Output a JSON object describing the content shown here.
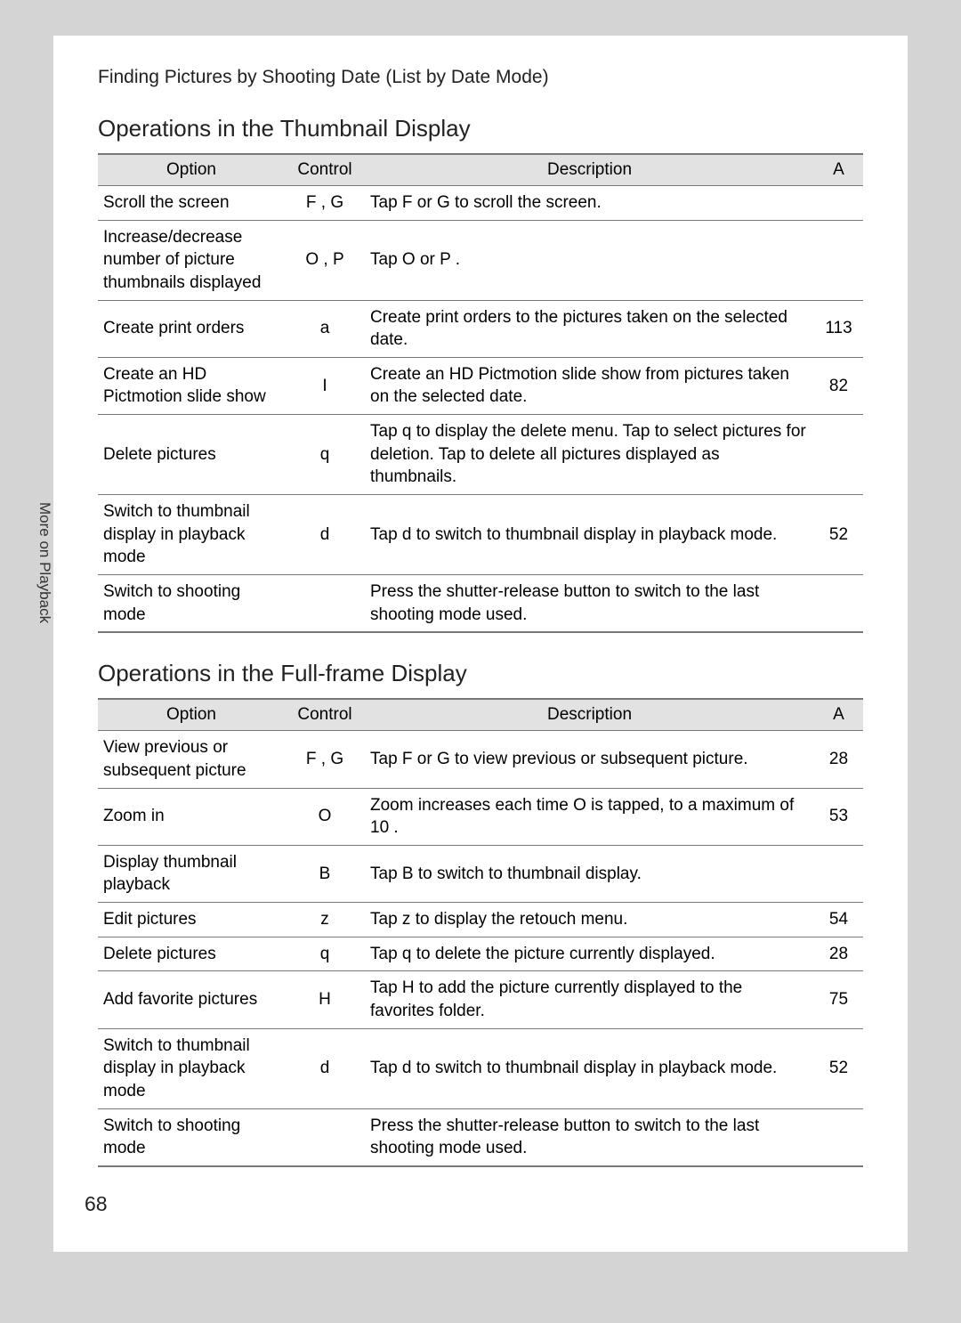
{
  "breadcrumb": "Finding Pictures by Shooting Date (List by Date Mode)",
  "side_tab": "More on Playback",
  "page_number": "68",
  "table_header": {
    "option": "Option",
    "control": "Control",
    "description": "Description",
    "page": "A"
  },
  "section1": {
    "title": "Operations in the Thumbnail Display",
    "rows": [
      {
        "option": "Scroll the screen",
        "control": "F , G",
        "description": "Tap F  or G  to scroll the screen.",
        "page": ""
      },
      {
        "option": "Increase/decrease number of picture thumbnails displayed",
        "control": "O , P",
        "description": "Tap O  or P .",
        "page": ""
      },
      {
        "option": "Create print orders",
        "control": "a",
        "description": "Create print orders to the pictures taken on the selected date.",
        "page": "113"
      },
      {
        "option": "Create an HD Pictmotion slide show",
        "control": "I",
        "description": "Create an HD Pictmotion slide show from pictures taken on the selected date.",
        "page": "82"
      },
      {
        "option": "Delete pictures",
        "control": "q",
        "description": "Tap q  to display the delete menu. Tap  to select pictures for deletion. Tap  to delete all pictures displayed as thumbnails.",
        "page": ""
      },
      {
        "option": "Switch to thumbnail display in playback mode",
        "control": "d",
        "description": "Tap d  to switch to thumbnail display in playback mode.",
        "page": "52"
      },
      {
        "option": "Switch to shooting mode",
        "control": "",
        "description": "Press the shutter-release button to switch to the last shooting mode used.",
        "page": ""
      }
    ]
  },
  "section2": {
    "title": "Operations in the Full-frame Display",
    "rows": [
      {
        "option": "View previous or subsequent picture",
        "control": "F , G",
        "description": "Tap F  or G  to view previous or subsequent picture.",
        "page": "28"
      },
      {
        "option": "Zoom in",
        "control": "O",
        "description": "Zoom increases each time O  is tapped, to a maximum of 10 .",
        "page": "53"
      },
      {
        "option": "Display thumbnail playback",
        "control": "B",
        "description": "Tap B  to switch to thumbnail display.",
        "page": ""
      },
      {
        "option": "Edit pictures",
        "control": "z",
        "description": "Tap z  to display the retouch menu.",
        "page": "54"
      },
      {
        "option": "Delete pictures",
        "control": "q",
        "description": "Tap q  to delete the picture currently displayed.",
        "page": "28"
      },
      {
        "option": "Add favorite pictures",
        "control": "H",
        "description": "Tap H  to add the picture currently displayed to the favorites folder.",
        "page": "75"
      },
      {
        "option": "Switch to thumbnail display in playback mode",
        "control": "d",
        "description": "Tap d  to switch to thumbnail display in playback mode.",
        "page": "52"
      },
      {
        "option": "Switch to shooting mode",
        "control": "",
        "description": "Press the shutter-release button to switch to the last shooting mode used.",
        "page": ""
      }
    ]
  }
}
